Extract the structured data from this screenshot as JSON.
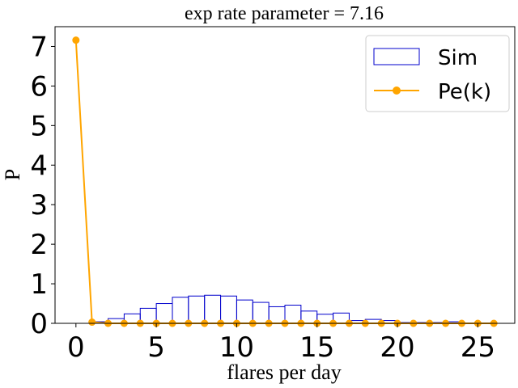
{
  "chart_data": {
    "type": "bar",
    "title": "exp rate parameter = 7.16",
    "xlabel": "flares per day",
    "ylabel": "P",
    "xlim": [
      -1.3,
      27.3
    ],
    "ylim": [
      0,
      7.5
    ],
    "xticks": [
      0,
      5,
      10,
      15,
      20,
      25
    ],
    "yticks": [
      0,
      1,
      2,
      3,
      4,
      5,
      6,
      7
    ],
    "legend_position": "top-right",
    "colors": {
      "sim": "#0000cc",
      "pek": "#ffa500"
    },
    "series": [
      {
        "name": "Sim",
        "kind": "histogram",
        "bin_edges": [
          1,
          2,
          3,
          4,
          5,
          6,
          7,
          8,
          9,
          10,
          11,
          12,
          13,
          14,
          15,
          16,
          17,
          18,
          19,
          20,
          21,
          22,
          23,
          24
        ],
        "values": [
          0.04,
          0.12,
          0.24,
          0.38,
          0.5,
          0.66,
          0.69,
          0.71,
          0.69,
          0.59,
          0.53,
          0.42,
          0.46,
          0.31,
          0.23,
          0.26,
          0.07,
          0.1,
          0.07,
          0.02,
          0.02,
          0.02,
          0.04
        ]
      },
      {
        "name": "Pe(k)",
        "kind": "line",
        "x": [
          0,
          1,
          2,
          3,
          4,
          5,
          6,
          7,
          8,
          9,
          10,
          11,
          12,
          13,
          14,
          15,
          16,
          17,
          18,
          19,
          20,
          21,
          22,
          23,
          24,
          25,
          26
        ],
        "values": [
          7.16,
          0.03,
          0,
          0,
          0,
          0,
          0,
          0,
          0,
          0,
          0,
          0,
          0,
          0,
          0,
          0,
          0,
          0,
          0,
          0,
          0,
          0,
          0,
          0,
          0,
          0,
          0
        ]
      }
    ]
  }
}
